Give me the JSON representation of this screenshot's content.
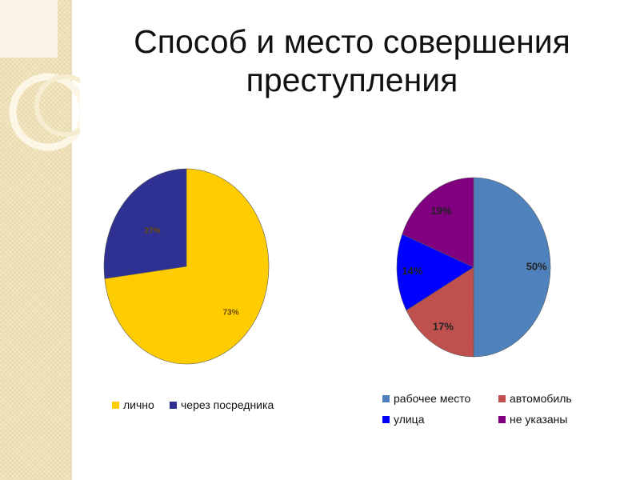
{
  "title": "Способ и место совершения преступления",
  "chart_data": [
    {
      "type": "pie",
      "title": "",
      "labels": [
        "лично",
        "через посредника"
      ],
      "values": [
        73,
        27
      ],
      "value_labels": [
        "73%",
        "27%"
      ],
      "colors": [
        "#ffcc00",
        "#2e3192"
      ],
      "legend_position": "bottom"
    },
    {
      "type": "pie",
      "title": "",
      "labels": [
        "рабочее место",
        "автомобиль",
        "улица",
        "не указаны"
      ],
      "values": [
        50,
        17,
        14,
        19
      ],
      "value_labels": [
        "50%",
        "17%",
        "14%",
        "19%"
      ],
      "colors": [
        "#4f81bd",
        "#c0504d",
        "#0000ff",
        "#800080"
      ],
      "legend_position": "bottom"
    }
  ]
}
